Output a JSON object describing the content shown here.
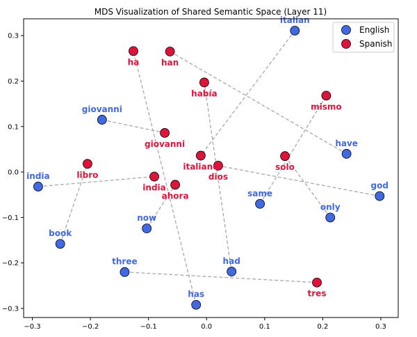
{
  "chart_data": {
    "type": "scatter",
    "title": "MDS Visualization of Shared Semantic Space (Layer 11)",
    "xlabel": "",
    "ylabel": "",
    "xlim": [
      -0.315,
      0.33
    ],
    "ylim": [
      -0.32,
      0.337
    ],
    "xticks": [
      -0.3,
      -0.2,
      -0.1,
      0.0,
      0.1,
      0.2,
      0.3
    ],
    "xtick_labels": [
      "−0.3",
      "−0.2",
      "−0.1",
      "0.0",
      "0.1",
      "0.2",
      "0.3"
    ],
    "yticks": [
      -0.3,
      -0.2,
      -0.1,
      0.0,
      0.1,
      0.2,
      0.3
    ],
    "ytick_labels": [
      "−0.3",
      "−0.2",
      "−0.1",
      "0.0",
      "0.1",
      "0.2",
      "0.3"
    ],
    "grid": false,
    "legend_position": "top-right",
    "series": [
      {
        "name": "English",
        "color": "#4169e1",
        "label_color": "#4169e1",
        "points": [
          {
            "label": "italian",
            "x": 0.152,
            "y": 0.311
          },
          {
            "label": "giovanni",
            "x": -0.18,
            "y": 0.115
          },
          {
            "label": "have",
            "x": 0.241,
            "y": 0.04
          },
          {
            "label": "india",
            "x": -0.29,
            "y": -0.032
          },
          {
            "label": "god",
            "x": 0.298,
            "y": -0.053
          },
          {
            "label": "same",
            "x": 0.092,
            "y": -0.07
          },
          {
            "label": "only",
            "x": 0.213,
            "y": -0.1
          },
          {
            "label": "now",
            "x": -0.103,
            "y": -0.124
          },
          {
            "label": "book",
            "x": -0.252,
            "y": -0.158
          },
          {
            "label": "three",
            "x": -0.141,
            "y": -0.22
          },
          {
            "label": "had",
            "x": 0.043,
            "y": -0.219
          },
          {
            "label": "has",
            "x": -0.018,
            "y": -0.292
          }
        ]
      },
      {
        "name": "Spanish",
        "color": "#dc143c",
        "label_color": "#dc143c",
        "points": [
          {
            "label": "ha",
            "x": -0.126,
            "y": 0.266
          },
          {
            "label": "han",
            "x": -0.063,
            "y": 0.265
          },
          {
            "label": "había",
            "x": -0.004,
            "y": 0.197
          },
          {
            "label": "mismo",
            "x": 0.206,
            "y": 0.168
          },
          {
            "label": "giovanni",
            "x": -0.072,
            "y": 0.086
          },
          {
            "label": "libro",
            "x": -0.205,
            "y": 0.018
          },
          {
            "label": "italiano",
            "x": -0.01,
            "y": 0.036
          },
          {
            "label": "dios",
            "x": 0.02,
            "y": 0.014
          },
          {
            "label": "solo",
            "x": 0.135,
            "y": 0.035
          },
          {
            "label": "india",
            "x": -0.09,
            "y": -0.01
          },
          {
            "label": "ahora",
            "x": -0.054,
            "y": -0.028
          },
          {
            "label": "tres",
            "x": 0.19,
            "y": -0.243
          }
        ]
      }
    ],
    "pairs": [
      {
        "english": "italian",
        "spanish": "italiano"
      },
      {
        "english": "giovanni",
        "spanish": "giovanni"
      },
      {
        "english": "have",
        "spanish": "han"
      },
      {
        "english": "india",
        "spanish": "india"
      },
      {
        "english": "god",
        "spanish": "dios"
      },
      {
        "english": "same",
        "spanish": "mismo"
      },
      {
        "english": "only",
        "spanish": "solo"
      },
      {
        "english": "now",
        "spanish": "ahora"
      },
      {
        "english": "book",
        "spanish": "libro"
      },
      {
        "english": "three",
        "spanish": "tres"
      },
      {
        "english": "had",
        "spanish": "había"
      },
      {
        "english": "has",
        "spanish": "ha"
      }
    ],
    "pair_line_color": "#a9a9a9"
  }
}
